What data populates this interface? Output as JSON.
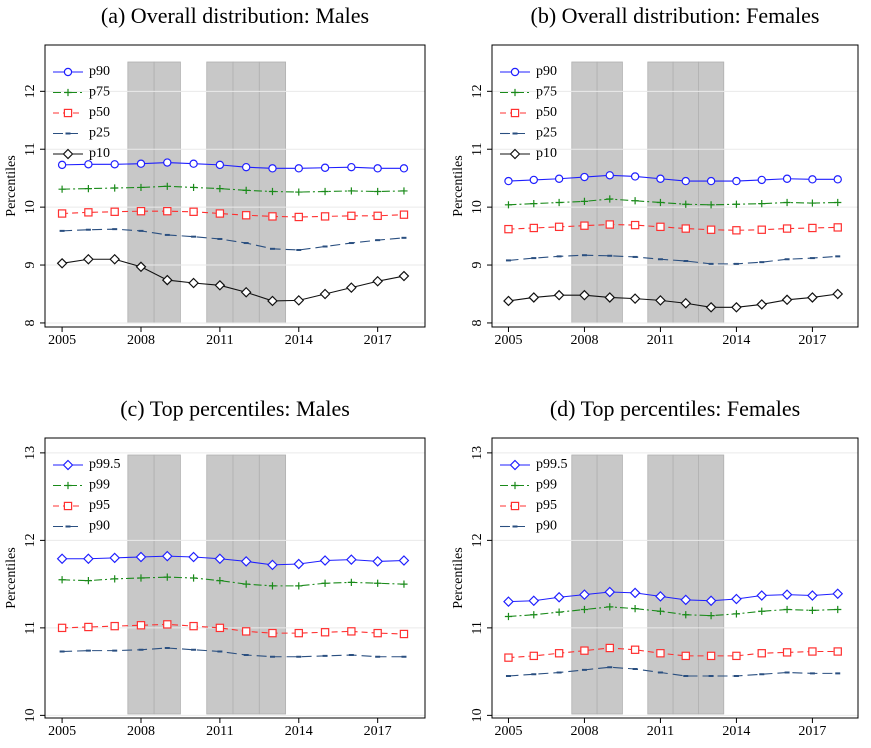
{
  "chart_data": [
    {
      "type": "line",
      "title": "(a) Overall distribution: Males",
      "ylabel": "Percentiles",
      "x": [
        2005,
        2006,
        2007,
        2008,
        2009,
        2010,
        2011,
        2012,
        2013,
        2014,
        2015,
        2016,
        2017,
        2018
      ],
      "xlim": [
        2004.35,
        2018.8
      ],
      "xticks": [
        2005,
        2008,
        2011,
        2014,
        2017
      ],
      "ylim": [
        7.93,
        12.8
      ],
      "yticks": [
        8,
        9,
        10,
        11,
        12
      ],
      "grid": true,
      "legend": "upper left",
      "shaded_years": [
        2008,
        2009,
        2011,
        2012,
        2013
      ],
      "series": [
        {
          "name": "p90",
          "color": "#1f1fff",
          "marker": "circle",
          "dash": "solid",
          "values": [
            10.73,
            10.74,
            10.74,
            10.75,
            10.77,
            10.75,
            10.73,
            10.69,
            10.67,
            10.67,
            10.68,
            10.69,
            10.67,
            10.67
          ]
        },
        {
          "name": "p75",
          "color": "#1a8a1a",
          "marker": "plus",
          "dash": "dashdot",
          "values": [
            10.31,
            10.32,
            10.33,
            10.34,
            10.36,
            10.34,
            10.32,
            10.29,
            10.27,
            10.26,
            10.27,
            10.28,
            10.27,
            10.28
          ]
        },
        {
          "name": "p50",
          "color": "#ff3030",
          "marker": "square",
          "dash": "dashed",
          "values": [
            9.89,
            9.91,
            9.92,
            9.93,
            9.93,
            9.92,
            9.89,
            9.86,
            9.84,
            9.83,
            9.84,
            9.85,
            9.85,
            9.87
          ]
        },
        {
          "name": "p25",
          "color": "#2a4f80",
          "marker": "tick",
          "dash": "longdash",
          "values": [
            9.59,
            9.61,
            9.62,
            9.59,
            9.52,
            9.49,
            9.45,
            9.38,
            9.28,
            9.26,
            9.32,
            9.38,
            9.43,
            9.47
          ]
        },
        {
          "name": "p10",
          "color": "#111111",
          "marker": "diamond",
          "dash": "solid",
          "values": [
            9.03,
            9.1,
            9.1,
            8.97,
            8.74,
            8.69,
            8.65,
            8.53,
            8.38,
            8.39,
            8.5,
            8.61,
            8.72,
            8.81
          ]
        }
      ]
    },
    {
      "type": "line",
      "title": "(b) Overall distribution: Females",
      "ylabel": "Percentiles",
      "x": [
        2005,
        2006,
        2007,
        2008,
        2009,
        2010,
        2011,
        2012,
        2013,
        2014,
        2015,
        2016,
        2017,
        2018
      ],
      "xlim": [
        2004.35,
        2018.8
      ],
      "xticks": [
        2005,
        2008,
        2011,
        2014,
        2017
      ],
      "ylim": [
        7.93,
        12.8
      ],
      "yticks": [
        8,
        9,
        10,
        11,
        12
      ],
      "grid": true,
      "legend": "upper left",
      "shaded_years": [
        2008,
        2009,
        2011,
        2012,
        2013
      ],
      "series": [
        {
          "name": "p90",
          "color": "#1f1fff",
          "marker": "circle",
          "dash": "solid",
          "values": [
            10.45,
            10.47,
            10.49,
            10.52,
            10.55,
            10.53,
            10.49,
            10.45,
            10.45,
            10.45,
            10.47,
            10.49,
            10.48,
            10.48
          ]
        },
        {
          "name": "p75",
          "color": "#1a8a1a",
          "marker": "plus",
          "dash": "dashdot",
          "values": [
            10.04,
            10.06,
            10.08,
            10.1,
            10.14,
            10.11,
            10.08,
            10.05,
            10.04,
            10.05,
            10.06,
            10.08,
            10.07,
            10.08
          ]
        },
        {
          "name": "p50",
          "color": "#ff3030",
          "marker": "square",
          "dash": "dashed",
          "values": [
            9.62,
            9.64,
            9.66,
            9.68,
            9.7,
            9.69,
            9.66,
            9.63,
            9.61,
            9.6,
            9.61,
            9.63,
            9.64,
            9.65
          ]
        },
        {
          "name": "p25",
          "color": "#2a4f80",
          "marker": "tick",
          "dash": "longdash",
          "values": [
            9.08,
            9.12,
            9.15,
            9.17,
            9.16,
            9.14,
            9.1,
            9.07,
            9.02,
            9.02,
            9.05,
            9.1,
            9.12,
            9.15
          ]
        },
        {
          "name": "p10",
          "color": "#111111",
          "marker": "diamond",
          "dash": "solid",
          "values": [
            8.38,
            8.44,
            8.48,
            8.48,
            8.44,
            8.42,
            8.39,
            8.34,
            8.27,
            8.27,
            8.32,
            8.4,
            8.44,
            8.5
          ]
        }
      ]
    },
    {
      "type": "line",
      "title": "(c) Top percentiles: Males",
      "ylabel": "Percentiles",
      "x": [
        2005,
        2006,
        2007,
        2008,
        2009,
        2010,
        2011,
        2012,
        2013,
        2014,
        2015,
        2016,
        2017,
        2018
      ],
      "xlim": [
        2004.35,
        2018.8
      ],
      "xticks": [
        2005,
        2008,
        2011,
        2014,
        2017
      ],
      "ylim": [
        9.97,
        13.17
      ],
      "yticks": [
        10,
        11,
        12,
        13
      ],
      "grid": true,
      "legend": "upper left",
      "shaded_years": [
        2008,
        2009,
        2011,
        2012,
        2013
      ],
      "series": [
        {
          "name": "p99.5",
          "color": "#1f1fff",
          "marker": "diamond",
          "dash": "solid",
          "values": [
            11.79,
            11.79,
            11.8,
            11.81,
            11.82,
            11.81,
            11.79,
            11.76,
            11.72,
            11.73,
            11.77,
            11.78,
            11.76,
            11.77
          ]
        },
        {
          "name": "p99",
          "color": "#1a8a1a",
          "marker": "plus",
          "dash": "dashdot",
          "values": [
            11.55,
            11.54,
            11.56,
            11.57,
            11.58,
            11.57,
            11.54,
            11.5,
            11.48,
            11.48,
            11.51,
            11.52,
            11.51,
            11.5
          ]
        },
        {
          "name": "p95",
          "color": "#ff3030",
          "marker": "square",
          "dash": "dashed",
          "values": [
            11.0,
            11.01,
            11.02,
            11.03,
            11.04,
            11.02,
            11.0,
            10.96,
            10.94,
            10.94,
            10.95,
            10.96,
            10.94,
            10.93
          ]
        },
        {
          "name": "p90",
          "color": "#2a4f80",
          "marker": "tick",
          "dash": "longdash",
          "values": [
            10.73,
            10.74,
            10.74,
            10.75,
            10.77,
            10.75,
            10.73,
            10.69,
            10.67,
            10.67,
            10.68,
            10.69,
            10.67,
            10.67
          ]
        }
      ]
    },
    {
      "type": "line",
      "title": "(d) Top percentiles: Females",
      "ylabel": "Percentiles",
      "x": [
        2005,
        2006,
        2007,
        2008,
        2009,
        2010,
        2011,
        2012,
        2013,
        2014,
        2015,
        2016,
        2017,
        2018
      ],
      "xlim": [
        2004.35,
        2018.8
      ],
      "xticks": [
        2005,
        2008,
        2011,
        2014,
        2017
      ],
      "ylim": [
        9.97,
        13.17
      ],
      "yticks": [
        10,
        11,
        12,
        13
      ],
      "grid": true,
      "legend": "upper left",
      "shaded_years": [
        2008,
        2009,
        2011,
        2012,
        2013
      ],
      "series": [
        {
          "name": "p99.5",
          "color": "#1f1fff",
          "marker": "diamond",
          "dash": "solid",
          "values": [
            11.3,
            11.31,
            11.35,
            11.38,
            11.41,
            11.4,
            11.36,
            11.32,
            11.31,
            11.33,
            11.37,
            11.38,
            11.37,
            11.39
          ]
        },
        {
          "name": "p99",
          "color": "#1a8a1a",
          "marker": "plus",
          "dash": "dashdot",
          "values": [
            11.13,
            11.15,
            11.18,
            11.21,
            11.24,
            11.22,
            11.19,
            11.15,
            11.14,
            11.16,
            11.19,
            11.21,
            11.2,
            11.21
          ]
        },
        {
          "name": "p95",
          "color": "#ff3030",
          "marker": "square",
          "dash": "dashed",
          "values": [
            10.66,
            10.68,
            10.71,
            10.74,
            10.77,
            10.75,
            10.71,
            10.68,
            10.68,
            10.68,
            10.71,
            10.72,
            10.73,
            10.73
          ]
        },
        {
          "name": "p90",
          "color": "#2a4f80",
          "marker": "tick",
          "dash": "longdash",
          "values": [
            10.45,
            10.47,
            10.49,
            10.52,
            10.55,
            10.53,
            10.49,
            10.45,
            10.45,
            10.45,
            10.47,
            10.49,
            10.48,
            10.48
          ]
        }
      ]
    }
  ]
}
